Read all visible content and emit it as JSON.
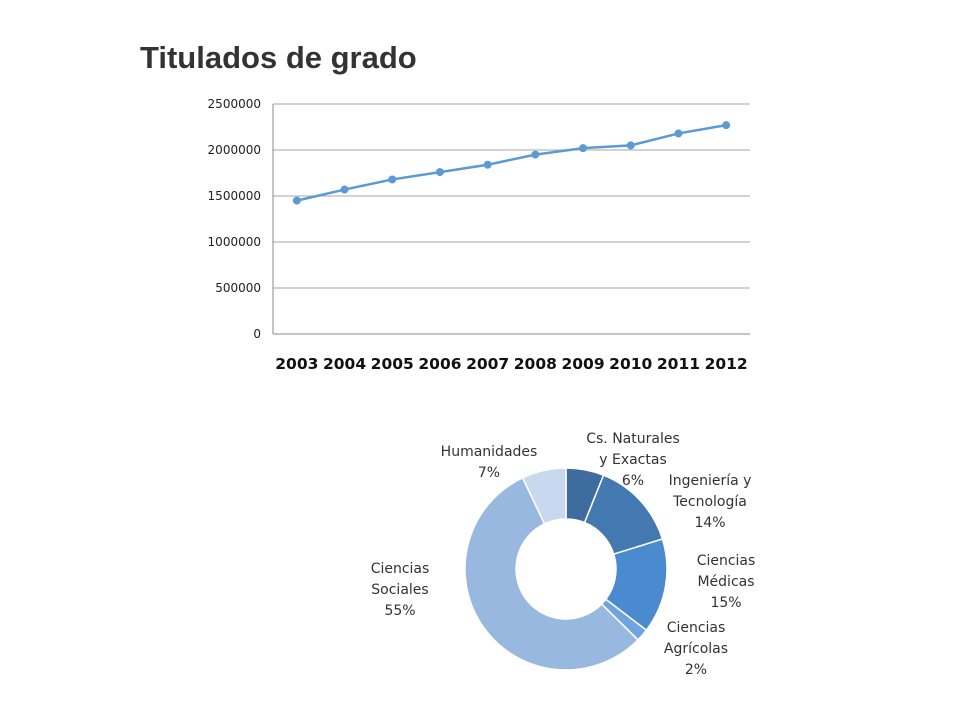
{
  "page": {
    "title": "Titulados de grado"
  },
  "chart_data": [
    {
      "type": "line",
      "title": "Titulados de grado",
      "x": [
        "2003",
        "2004",
        "2005",
        "2006",
        "2007",
        "2008",
        "2009",
        "2010",
        "2011",
        "2012"
      ],
      "series": [
        {
          "values": [
            1450000,
            1570000,
            1680000,
            1760000,
            1840000,
            1950000,
            2020000,
            2050000,
            2180000,
            2270000
          ]
        }
      ],
      "yticks": [
        "0",
        "500000",
        "1000000",
        "1500000",
        "2000000",
        "2500000"
      ],
      "ylim": [
        0,
        2500000
      ],
      "grid": true,
      "color": "#5B9BD5"
    },
    {
      "type": "pie",
      "donut": true,
      "slices": [
        {
          "label_lines": [
            "Cs. Naturales",
            "y Exactas",
            "6%"
          ],
          "value": 6,
          "color": "#3E6C9E"
        },
        {
          "label_lines": [
            "Ingeniería y",
            "Tecnología",
            "14%"
          ],
          "value": 14,
          "color": "#4478B0"
        },
        {
          "label_lines": [
            "Ciencias",
            "Médicas",
            "15%"
          ],
          "value": 15,
          "color": "#4A8BD0"
        },
        {
          "label_lines": [
            "Ciencias",
            "Agrícolas",
            "2%"
          ],
          "value": 2,
          "color": "#6FA4DE"
        },
        {
          "label_lines": [
            "Ciencias",
            "Sociales",
            "55%"
          ],
          "value": 55,
          "color": "#98B8E0"
        },
        {
          "label_lines": [
            "Humanidades",
            "7%"
          ],
          "value": 7,
          "color": "#C8D8EE"
        }
      ]
    }
  ]
}
